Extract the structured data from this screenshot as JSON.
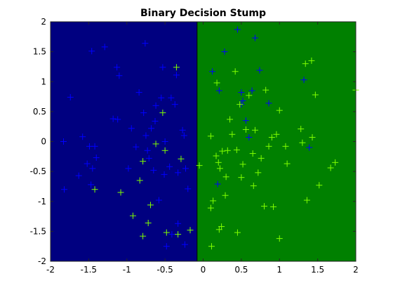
{
  "chart_data": {
    "type": "scatter",
    "title": "Binary Decision Stump",
    "xlabel": "",
    "ylabel": "",
    "xlim": [
      -2,
      2
    ],
    "ylim": [
      -2,
      2
    ],
    "xticks": [
      -2,
      -1.5,
      -1,
      -0.5,
      0,
      0.5,
      1,
      1.5,
      2
    ],
    "yticks": [
      -2,
      -1.5,
      -1,
      -0.5,
      0,
      0.5,
      1,
      1.5,
      2
    ],
    "xtick_labels": [
      "-2",
      "-1.5",
      "-1",
      "-0.5",
      "0",
      "0.5",
      "1",
      "1.5",
      "2"
    ],
    "ytick_labels": [
      "-2",
      "-1.5",
      "-1",
      "-0.5",
      "0",
      "0.5",
      "1",
      "1.5",
      "2"
    ],
    "grid": false,
    "decision_threshold_x": -0.08,
    "regions": [
      {
        "x_range": [
          -2,
          -0.08
        ],
        "color": "#000080"
      },
      {
        "x_range": [
          -0.08,
          2
        ],
        "color": "#008000"
      }
    ],
    "marker": "+",
    "series": [
      {
        "color": "#0000ff",
        "points": [
          [
            -1.74,
            0.74
          ],
          [
            -1.83,
            0.0
          ],
          [
            -1.82,
            -0.8
          ],
          [
            -1.63,
            -0.57
          ],
          [
            -1.58,
            0.08
          ],
          [
            -1.52,
            -0.37
          ],
          [
            -1.49,
            -0.08
          ],
          [
            -1.47,
            -0.72
          ],
          [
            -1.45,
            -0.45
          ],
          [
            -1.4,
            -0.27
          ],
          [
            -1.42,
            -0.08
          ],
          [
            -1.46,
            1.51
          ],
          [
            -1.29,
            1.58
          ],
          [
            -1.18,
            0.38
          ],
          [
            -1.13,
            1.24
          ],
          [
            -1.1,
            1.1
          ],
          [
            -1.12,
            0.37
          ],
          [
            -0.98,
            -0.45
          ],
          [
            -0.94,
            0.22
          ],
          [
            -0.88,
            -0.09
          ],
          [
            -0.84,
            0.82
          ],
          [
            -0.76,
            1.64
          ],
          [
            -0.78,
            0.48
          ],
          [
            -0.75,
            0.1
          ],
          [
            -0.73,
            -0.15
          ],
          [
            -0.71,
            -0.28
          ],
          [
            -0.68,
            0.22
          ],
          [
            -0.63,
            0.34
          ],
          [
            -0.58,
            -0.98
          ],
          [
            -0.55,
            0.73
          ],
          [
            -0.53,
            1.24
          ],
          [
            -0.51,
            -0.55
          ],
          [
            -0.5,
            0.0
          ],
          [
            -0.44,
            -0.42
          ],
          [
            -0.42,
            0.73
          ],
          [
            -0.37,
            0.62
          ],
          [
            -0.35,
            1.11
          ],
          [
            -0.33,
            -0.52
          ],
          [
            -0.27,
            0.19
          ],
          [
            -0.25,
            0.1
          ],
          [
            -0.23,
            -0.45
          ],
          [
            -0.2,
            -0.79
          ],
          [
            -0.48,
            -1.75
          ],
          [
            -0.41,
            -1.55
          ],
          [
            -0.33,
            -1.37
          ],
          [
            -0.24,
            -1.72
          ],
          [
            -0.65,
            -0.48
          ],
          [
            -0.62,
            0.6
          ],
          [
            0.19,
            -0.71
          ],
          [
            0.28,
            1.5
          ],
          [
            0.45,
            1.87
          ],
          [
            0.5,
            0.82
          ],
          [
            0.52,
            0.68
          ],
          [
            0.56,
            0.35
          ],
          [
            0.6,
            0.07
          ],
          [
            0.64,
            0.85
          ],
          [
            0.68,
            1.73
          ],
          [
            0.74,
            1.19
          ],
          [
            0.86,
            0.64
          ],
          [
            1.32,
            1.03
          ],
          [
            1.39,
            -0.1
          ],
          [
            0.12,
            1.17
          ],
          [
            0.21,
            0.85
          ],
          [
            0.5,
            0.62
          ]
        ]
      },
      {
        "color": "#80ff00",
        "points": [
          [
            -1.42,
            -0.8
          ],
          [
            -1.08,
            -0.85
          ],
          [
            -0.92,
            -1.24
          ],
          [
            -0.83,
            -0.65
          ],
          [
            -0.79,
            -1.58
          ],
          [
            -0.79,
            -0.33
          ],
          [
            -0.72,
            -1.36
          ],
          [
            -0.69,
            -1.06
          ],
          [
            -0.62,
            -0.04
          ],
          [
            -0.53,
            0.48
          ],
          [
            -0.5,
            -0.15
          ],
          [
            -0.48,
            -1.52
          ],
          [
            -0.35,
            1.24
          ],
          [
            -0.33,
            -1.55
          ],
          [
            -0.29,
            -0.29
          ],
          [
            -0.17,
            -1.48
          ],
          [
            -0.05,
            -0.4
          ],
          [
            0.11,
            -1.75
          ],
          [
            0.1,
            0.09
          ],
          [
            0.1,
            -1.11
          ],
          [
            0.13,
            -0.99
          ],
          [
            0.18,
            0.98
          ],
          [
            0.21,
            -1.47
          ],
          [
            0.24,
            -1.42
          ],
          [
            0.2,
            -0.35
          ],
          [
            0.22,
            -0.45
          ],
          [
            0.25,
            -0.16
          ],
          [
            0.29,
            -0.9
          ],
          [
            0.3,
            -0.59
          ],
          [
            0.32,
            -0.15
          ],
          [
            0.38,
            0.12
          ],
          [
            0.42,
            1.17
          ],
          [
            0.45,
            -1.52
          ],
          [
            0.48,
            0.62
          ],
          [
            0.5,
            -0.6
          ],
          [
            0.52,
            -0.38
          ],
          [
            0.6,
            0.77
          ],
          [
            0.66,
            -0.74
          ],
          [
            0.68,
            0.19
          ],
          [
            0.72,
            -0.52
          ],
          [
            0.76,
            -0.28
          ],
          [
            0.8,
            -1.08
          ],
          [
            0.82,
            0.86
          ],
          [
            0.86,
            -0.08
          ],
          [
            0.9,
            0.07
          ],
          [
            0.92,
            -1.09
          ],
          [
            1.0,
            0.52
          ],
          [
            1.08,
            -0.08
          ],
          [
            1.1,
            -0.37
          ],
          [
            1.28,
            0.21
          ],
          [
            1.3,
            -0.02
          ],
          [
            1.34,
            1.3
          ],
          [
            1.36,
            -0.98
          ],
          [
            1.43,
            0.07
          ],
          [
            1.47,
            0.78
          ],
          [
            1.52,
            -0.73
          ],
          [
            1.67,
            -0.44
          ],
          [
            1.73,
            -0.35
          ],
          [
            2.0,
            0.86
          ],
          [
            1.0,
            -1.62
          ],
          [
            1.42,
            1.35
          ],
          [
            0.35,
            0.37
          ],
          [
            0.65,
            -0.2
          ],
          [
            0.56,
            0.2
          ],
          [
            0.96,
            0.12
          ],
          [
            0.44,
            -0.14
          ],
          [
            0.17,
            -0.24
          ]
        ]
      }
    ]
  }
}
